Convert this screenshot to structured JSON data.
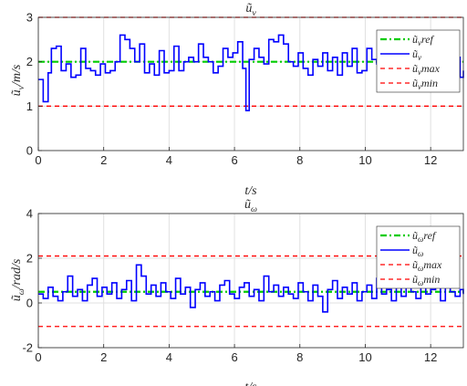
{
  "chart_data": [
    {
      "type": "line",
      "title": "ũ_v",
      "xlabel": "t/s",
      "ylabel": "ũ_v/m/s",
      "xlim": [
        0,
        13
      ],
      "ylim": [
        0,
        3
      ],
      "xticks": [
        0,
        2,
        4,
        6,
        8,
        10,
        12
      ],
      "yticks": [
        0,
        1,
        2,
        3
      ],
      "grid": true,
      "legend_position": "top-right",
      "series": [
        {
          "name": "ũ_v ref",
          "style": "dash-dot",
          "color": "#00cc00",
          "x": [
            0,
            13
          ],
          "y": [
            2,
            2
          ]
        },
        {
          "name": "ũ_v",
          "style": "staircase",
          "color": "#0000ff",
          "x": [
            0,
            0.15,
            0.3,
            0.4,
            0.55,
            0.7,
            0.85,
            1.0,
            1.15,
            1.3,
            1.45,
            1.6,
            1.75,
            1.9,
            2.05,
            2.2,
            2.35,
            2.5,
            2.65,
            2.8,
            2.95,
            3.1,
            3.25,
            3.4,
            3.55,
            3.7,
            3.85,
            4.0,
            4.15,
            4.3,
            4.45,
            4.6,
            4.75,
            4.9,
            5.05,
            5.2,
            5.35,
            5.5,
            5.65,
            5.8,
            5.95,
            6.1,
            6.25,
            6.35,
            6.45,
            6.6,
            6.75,
            6.9,
            7.05,
            7.2,
            7.35,
            7.5,
            7.65,
            7.8,
            7.95,
            8.1,
            8.25,
            8.4,
            8.55,
            8.7,
            8.85,
            9.0,
            9.15,
            9.3,
            9.45,
            9.6,
            9.75,
            9.9,
            10.05,
            10.2,
            10.35,
            10.5,
            10.65,
            10.8,
            10.95,
            11.1,
            11.25,
            11.4,
            11.55,
            11.7,
            11.85,
            12.0,
            12.15,
            12.3,
            12.45,
            12.6,
            12.75,
            12.9,
            13.0
          ],
          "y": [
            1.6,
            1.1,
            1.75,
            2.3,
            2.35,
            1.8,
            1.95,
            1.65,
            1.7,
            2.3,
            1.85,
            1.8,
            1.7,
            1.95,
            1.75,
            1.8,
            2.0,
            2.6,
            2.5,
            2.3,
            2.0,
            2.4,
            1.75,
            1.95,
            1.7,
            2.25,
            1.75,
            1.8,
            2.35,
            1.8,
            2.0,
            2.1,
            2.0,
            2.4,
            2.1,
            2.0,
            1.75,
            1.9,
            2.3,
            2.1,
            2.2,
            2.45,
            1.85,
            0.9,
            2.05,
            2.3,
            2.1,
            1.95,
            2.5,
            2.45,
            2.6,
            2.4,
            2.0,
            1.9,
            2.2,
            1.85,
            1.7,
            2.05,
            1.9,
            2.2,
            1.8,
            2.1,
            1.7,
            2.2,
            1.9,
            2.3,
            1.75,
            1.8,
            2.3,
            2.05,
            1.95,
            2.2,
            1.75,
            2.05,
            1.8,
            2.25,
            1.8,
            2.1,
            1.75,
            1.8,
            2.3,
            1.95,
            2.1,
            1.6,
            2.3,
            1.9,
            2.1,
            1.65,
            1.8
          ]
        }
      ],
      "reference_lines": [
        {
          "name": "ũ_v max",
          "style": "dashed",
          "color": "#ff0000",
          "y": 3
        },
        {
          "name": "ũ_v min",
          "style": "dashed",
          "color": "#ff0000",
          "y": 1
        }
      ]
    },
    {
      "type": "line",
      "title": "ũ_ω",
      "xlabel": "t/s",
      "ylabel": "ũ_ω/rad/s",
      "xlim": [
        0,
        13
      ],
      "ylim": [
        -2,
        4
      ],
      "xticks": [
        0,
        2,
        4,
        6,
        8,
        10,
        12
      ],
      "yticks": [
        -2,
        0,
        2,
        4
      ],
      "grid": true,
      "legend_position": "top-right",
      "series": [
        {
          "name": "ũ_ω ref",
          "style": "dash-dot",
          "color": "#00cc00",
          "x": [
            0,
            13
          ],
          "y": [
            0.5,
            0.5
          ]
        },
        {
          "name": "ũ_ω",
          "style": "staircase",
          "color": "#0000ff",
          "x": [
            0,
            0.15,
            0.3,
            0.45,
            0.6,
            0.75,
            0.9,
            1.05,
            1.2,
            1.35,
            1.5,
            1.65,
            1.8,
            1.95,
            2.1,
            2.25,
            2.4,
            2.55,
            2.7,
            2.85,
            3.0,
            3.15,
            3.3,
            3.45,
            3.6,
            3.75,
            3.9,
            4.05,
            4.2,
            4.35,
            4.5,
            4.65,
            4.8,
            4.95,
            5.1,
            5.25,
            5.4,
            5.55,
            5.7,
            5.85,
            6.0,
            6.15,
            6.3,
            6.45,
            6.6,
            6.75,
            6.9,
            7.05,
            7.2,
            7.35,
            7.5,
            7.65,
            7.8,
            7.95,
            8.1,
            8.25,
            8.4,
            8.55,
            8.7,
            8.85,
            9.0,
            9.15,
            9.3,
            9.45,
            9.6,
            9.75,
            9.9,
            10.05,
            10.2,
            10.35,
            10.5,
            10.65,
            10.8,
            10.95,
            11.1,
            11.25,
            11.4,
            11.55,
            11.7,
            11.85,
            12.0,
            12.15,
            12.3,
            12.45,
            12.6,
            12.75,
            12.9,
            13.0
          ],
          "y": [
            0.4,
            0.2,
            0.7,
            0.3,
            0.1,
            0.5,
            1.2,
            0.3,
            0.6,
            0.1,
            0.8,
            1.1,
            0.3,
            0.7,
            0.4,
            0.9,
            0.2,
            0.6,
            1.0,
            0.1,
            1.7,
            1.2,
            0.4,
            0.8,
            0.3,
            0.9,
            0.5,
            0.2,
            1.1,
            0.4,
            0.7,
            -0.2,
            0.6,
            0.9,
            0.3,
            0.5,
            0.1,
            0.8,
            1.0,
            0.4,
            0.2,
            0.7,
            0.9,
            0.3,
            0.6,
            0.1,
            1.2,
            0.5,
            0.8,
            0.3,
            0.7,
            0.4,
            0.2,
            0.9,
            0.5,
            0.1,
            0.8,
            0.3,
            -0.4,
            0.6,
            1.0,
            0.2,
            0.7,
            0.4,
            0.9,
            0.1,
            0.5,
            0.8,
            0.2,
            1.1,
            0.4,
            0.6,
            0.1,
            0.9,
            0.3,
            0.7,
            0.5,
            0.2,
            0.8,
            0.4,
            0.6,
            1.0,
            0.1,
            0.7,
            0.5,
            0.3,
            0.6,
            0.4
          ]
        }
      ],
      "reference_lines": [
        {
          "name": "ũ_ω max",
          "style": "dashed",
          "color": "#ff0000",
          "y": 2.1
        },
        {
          "name": "ũ_ω min",
          "style": "dashed",
          "color": "#ff0000",
          "y": -1.05
        }
      ]
    }
  ]
}
